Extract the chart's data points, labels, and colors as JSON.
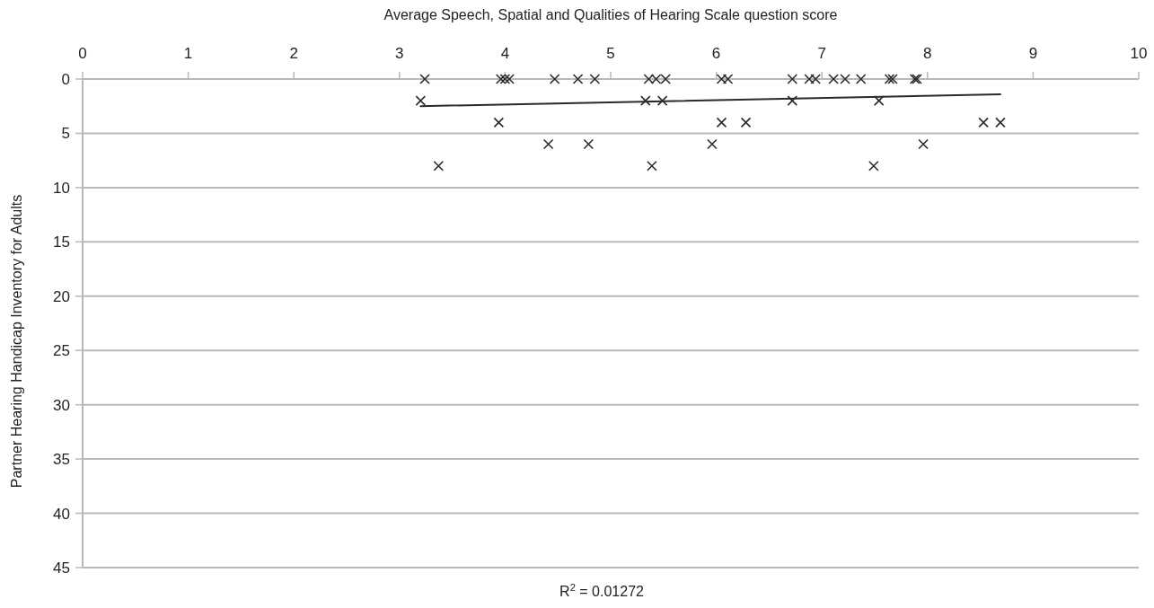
{
  "chart_data": {
    "type": "scatter",
    "xlabel": "Average Speech, Spatial and Qualities of Hearing Scale question score",
    "ylabel": "Partner Hearing Handicap Inventory for Adults",
    "xlim": [
      0,
      10
    ],
    "xticks": [
      0,
      1,
      2,
      3,
      4,
      5,
      6,
      7,
      8,
      9,
      10
    ],
    "ylim": [
      45,
      0
    ],
    "yticks": [
      0,
      5,
      10,
      15,
      20,
      25,
      30,
      35,
      40,
      45
    ],
    "grid": "y",
    "marker": "cross",
    "series": [
      {
        "color": "#2a2a2a",
        "x": [
          3.24,
          3.96,
          4.0,
          4.04,
          4.47,
          4.69,
          4.85,
          5.36,
          5.43,
          5.52,
          6.05,
          6.11,
          6.72,
          6.88,
          6.94,
          7.11,
          7.22,
          7.37,
          7.64,
          7.67,
          7.88,
          7.9,
          3.2,
          5.33,
          5.49,
          6.72,
          7.54,
          3.94,
          6.05,
          6.28,
          8.53,
          8.69,
          4.41,
          4.79,
          5.96,
          7.96,
          3.37,
          5.39,
          7.49
        ],
        "values": [
          0,
          0,
          0,
          0,
          0,
          0,
          0,
          0,
          0,
          0,
          0,
          0,
          0,
          0,
          0,
          0,
          0,
          0,
          0,
          0,
          0,
          0,
          2,
          2,
          2,
          2,
          2,
          4,
          4,
          4,
          4,
          4,
          6,
          6,
          6,
          6,
          8,
          8,
          8
        ]
      },
      {
        "type": "line",
        "color": "#2a2a2a",
        "marker": "none",
        "line_style": "solid",
        "x": [
          3.2,
          8.69
        ],
        "values": [
          2.5,
          1.4
        ]
      }
    ],
    "annotations": [
      "R$^{2}$ = 0.01272"
    ]
  }
}
